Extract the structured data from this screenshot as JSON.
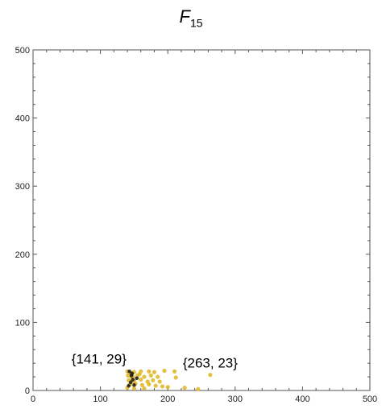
{
  "chart_data": {
    "type": "scatter",
    "title": {
      "main": "F",
      "subscript": "15"
    },
    "xlabel": "",
    "ylabel": "",
    "xlim": [
      0,
      500
    ],
    "ylim": [
      0,
      500
    ],
    "x_ticks": [
      0,
      100,
      200,
      300,
      400,
      500
    ],
    "y_ticks": [
      0,
      100,
      200,
      300,
      400,
      500
    ],
    "grid": false,
    "colors": {
      "point": "#e0b92a",
      "point_dark": "#1a1408",
      "axis": "#555555"
    },
    "points": [
      {
        "x": 140,
        "y": 28
      },
      {
        "x": 145,
        "y": 26
      },
      {
        "x": 150,
        "y": 27
      },
      {
        "x": 160,
        "y": 28
      },
      {
        "x": 172,
        "y": 28
      },
      {
        "x": 180,
        "y": 27
      },
      {
        "x": 195,
        "y": 29
      },
      {
        "x": 210,
        "y": 28
      },
      {
        "x": 141,
        "y": 22
      },
      {
        "x": 148,
        "y": 20
      },
      {
        "x": 155,
        "y": 22
      },
      {
        "x": 165,
        "y": 20
      },
      {
        "x": 175,
        "y": 22
      },
      {
        "x": 185,
        "y": 20
      },
      {
        "x": 212,
        "y": 19
      },
      {
        "x": 263,
        "y": 23
      },
      {
        "x": 142,
        "y": 15
      },
      {
        "x": 150,
        "y": 14
      },
      {
        "x": 160,
        "y": 16
      },
      {
        "x": 170,
        "y": 13
      },
      {
        "x": 178,
        "y": 15
      },
      {
        "x": 188,
        "y": 13
      },
      {
        "x": 144,
        "y": 9
      },
      {
        "x": 152,
        "y": 10
      },
      {
        "x": 162,
        "y": 8
      },
      {
        "x": 172,
        "y": 9
      },
      {
        "x": 182,
        "y": 7
      },
      {
        "x": 192,
        "y": 6
      },
      {
        "x": 200,
        "y": 5
      },
      {
        "x": 225,
        "y": 4
      },
      {
        "x": 140,
        "y": 4
      },
      {
        "x": 150,
        "y": 3
      },
      {
        "x": 165,
        "y": 3
      },
      {
        "x": 245,
        "y": 2
      },
      {
        "x": 146,
        "y": 20
      },
      {
        "x": 158,
        "y": 24
      }
    ],
    "dark_points": [
      {
        "x": 143,
        "y": 28
      },
      {
        "x": 146,
        "y": 22
      },
      {
        "x": 148,
        "y": 16
      },
      {
        "x": 145,
        "y": 12
      },
      {
        "x": 150,
        "y": 8
      },
      {
        "x": 142,
        "y": 7
      },
      {
        "x": 154,
        "y": 18
      },
      {
        "x": 147,
        "y": 25
      }
    ],
    "annotations": [
      {
        "text": "{141, 29}",
        "x": 141,
        "y": 29,
        "anchor": "end"
      },
      {
        "text": "{263, 23}",
        "x": 263,
        "y": 23,
        "anchor": "middle"
      }
    ]
  }
}
